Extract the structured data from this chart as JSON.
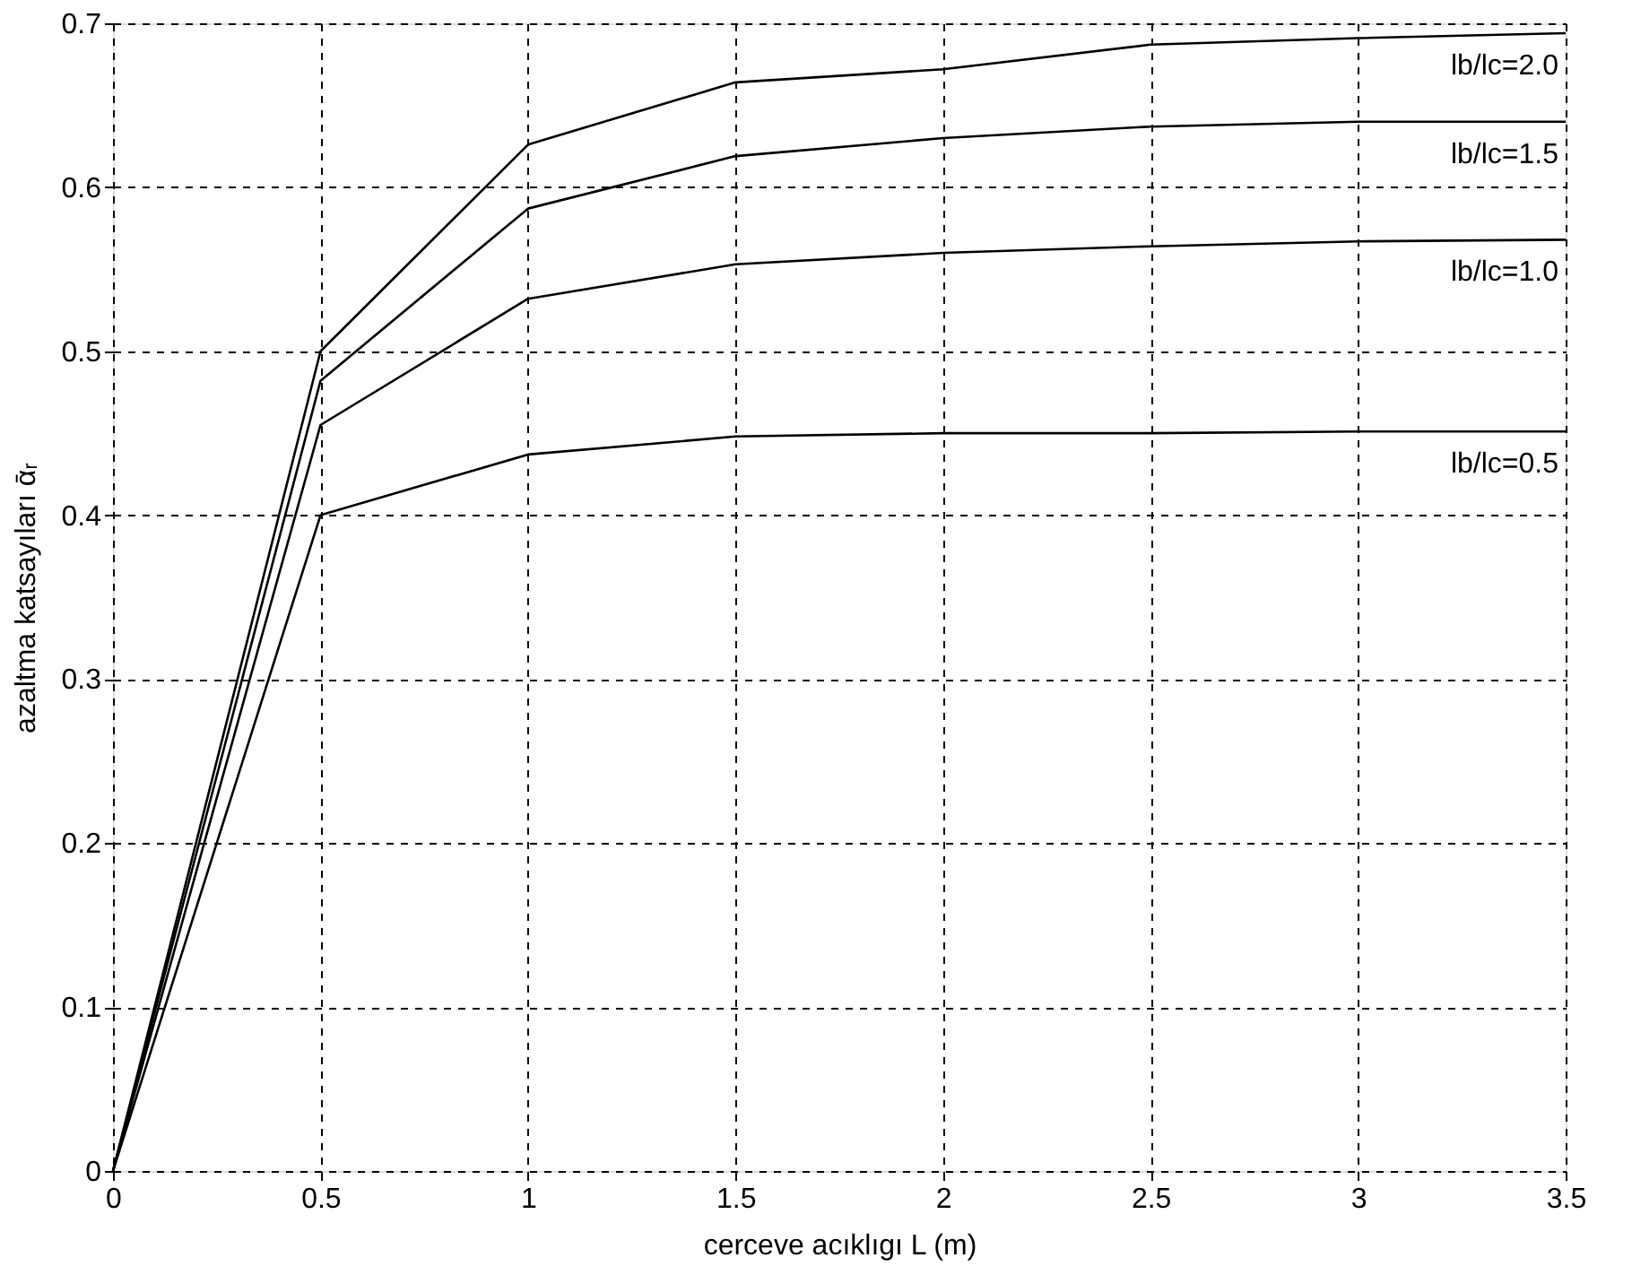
{
  "chart_data": {
    "type": "line",
    "xlabel": "cerceve acıklıgı L (m)",
    "ylabel": "azaltma katsayıları ᾱᵣ",
    "x": [
      0,
      0.5,
      1,
      1.5,
      2,
      2.5,
      3,
      3.5
    ],
    "series": [
      {
        "name": "lb/lc=2.0",
        "color": "#000000",
        "values": [
          0,
          0.5,
          0.626,
          0.664,
          0.672,
          0.687,
          0.691,
          0.694
        ]
      },
      {
        "name": "lb/lc=1.5",
        "color": "#000000",
        "values": [
          0,
          0.482,
          0.587,
          0.619,
          0.63,
          0.637,
          0.64,
          0.64
        ]
      },
      {
        "name": "lb/lc=1.0",
        "color": "#000000",
        "values": [
          0,
          0.455,
          0.532,
          0.553,
          0.56,
          0.564,
          0.567,
          0.568
        ]
      },
      {
        "name": "lb/lc=0.5",
        "color": "#000000",
        "values": [
          0,
          0.4,
          0.437,
          0.448,
          0.45,
          0.45,
          0.451,
          0.451
        ]
      }
    ],
    "xlim": [
      0,
      3.5
    ],
    "xticks": [
      0,
      0.5,
      1,
      1.5,
      2,
      2.5,
      3,
      3.5
    ],
    "ylim": [
      0,
      0.7
    ],
    "yticks": [
      0,
      0.1,
      0.2,
      0.3,
      0.4,
      0.5,
      0.6,
      0.7
    ],
    "grid": true,
    "legend": false,
    "marker": "none",
    "line_style": "solid"
  }
}
